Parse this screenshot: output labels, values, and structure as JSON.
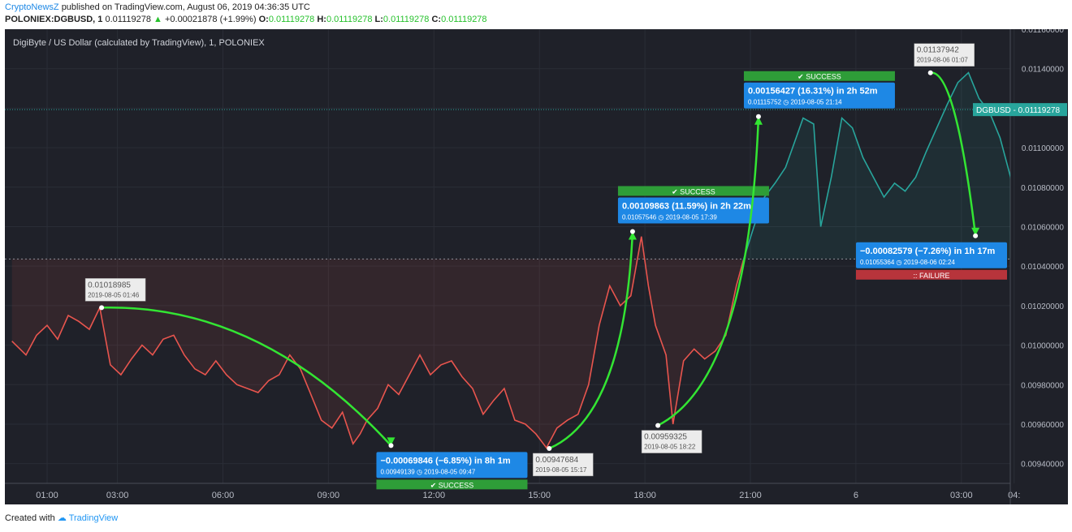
{
  "header": {
    "brand": "CryptoNewsZ",
    "published_text": "published on TradingView.com, August 06, 2019 04:36:35 UTC",
    "symbol": "POLONIEX:DGBUSD, 1",
    "price": "0.01119278",
    "change": "+0.00021878 (+1.99%)",
    "o_label": "O:",
    "o_value": "0.01119278",
    "h_label": "H:",
    "h_value": "0.01119278",
    "l_label": "L:",
    "l_value": "0.01119278",
    "c_label": "C:",
    "c_value": "0.01119278"
  },
  "footer": {
    "created_with": "Created with",
    "tv_name": "TradingView"
  },
  "colors": {
    "background": "#1f2129",
    "down_line": "#e8554e",
    "up_line": "#28a59c",
    "arrow": "#33e533",
    "label_blue": "#1e88e5",
    "success": "#2e9d38",
    "failure": "#b7343b"
  },
  "chart_data": {
    "type": "line",
    "title": "DigiByte / US Dollar (calculated by TradingView), 1, POLONIEX",
    "symbol_tag": "DGBUSD",
    "last_price": 0.01119278,
    "ylim": [
      0.0093,
      0.0116
    ],
    "y_ticks": [
      "0.01160000",
      "0.01140000",
      "0.01120000",
      "0.01100000",
      "0.01080000",
      "0.01060000",
      "0.01040000",
      "0.01020000",
      "0.01000000",
      "0.00980000",
      "0.00960000",
      "0.00940000"
    ],
    "x_ticks": [
      {
        "label": "01:00",
        "h": 0.0
      },
      {
        "label": "03:00",
        "h": 2.0
      },
      {
        "label": "06:00",
        "h": 5.0
      },
      {
        "label": "09:00",
        "h": 8.0
      },
      {
        "label": "12:00",
        "h": 11.0
      },
      {
        "label": "15:00",
        "h": 14.0
      },
      {
        "label": "18:00",
        "h": 17.0
      },
      {
        "label": "21:00",
        "h": 20.0
      },
      {
        "label": "6",
        "h": 23.0
      },
      {
        "label": "03:00",
        "h": 26.0
      },
      {
        "label": "04:"
      }
    ],
    "x_range_hours": [
      -1.0,
      27.6
    ],
    "prev_close_level": 0.010436,
    "series": [
      {
        "values": [
          [
            -1.0,
            0.01002
          ],
          [
            -0.6,
            0.00995
          ],
          [
            -0.3,
            0.01005
          ],
          [
            0.0,
            0.0101
          ],
          [
            0.3,
            0.01003
          ],
          [
            0.6,
            0.01015
          ],
          [
            0.9,
            0.01012
          ],
          [
            1.2,
            0.01008
          ],
          [
            1.5,
            0.01019
          ],
          [
            1.8,
            0.0099
          ],
          [
            2.1,
            0.00985
          ],
          [
            2.4,
            0.00993
          ],
          [
            2.7,
            0.01
          ],
          [
            3.0,
            0.00995
          ],
          [
            3.3,
            0.01003
          ],
          [
            3.6,
            0.01005
          ],
          [
            3.9,
            0.00995
          ],
          [
            4.2,
            0.00988
          ],
          [
            4.5,
            0.00985
          ],
          [
            4.8,
            0.00992
          ],
          [
            5.1,
            0.00985
          ],
          [
            5.4,
            0.0098
          ],
          [
            5.7,
            0.00978
          ],
          [
            6.0,
            0.00976
          ],
          [
            6.3,
            0.00982
          ],
          [
            6.6,
            0.00985
          ],
          [
            6.9,
            0.00995
          ],
          [
            7.2,
            0.00988
          ],
          [
            7.5,
            0.00975
          ],
          [
            7.8,
            0.00962
          ],
          [
            8.1,
            0.00958
          ],
          [
            8.4,
            0.00966
          ],
          [
            8.7,
            0.0095
          ],
          [
            8.9,
            0.00955
          ],
          [
            9.1,
            0.00962
          ],
          [
            9.4,
            0.00968
          ],
          [
            9.7,
            0.0098
          ],
          [
            10.0,
            0.00975
          ],
          [
            10.3,
            0.00985
          ],
          [
            10.6,
            0.00995
          ],
          [
            10.9,
            0.00985
          ],
          [
            11.2,
            0.0099
          ],
          [
            11.5,
            0.00992
          ],
          [
            11.8,
            0.00984
          ],
          [
            12.1,
            0.00978
          ],
          [
            12.4,
            0.00965
          ],
          [
            12.7,
            0.00972
          ],
          [
            13.0,
            0.00978
          ],
          [
            13.3,
            0.00962
          ],
          [
            13.6,
            0.0096
          ],
          [
            13.9,
            0.00955
          ],
          [
            14.2,
            0.00948
          ],
          [
            14.5,
            0.00958
          ],
          [
            14.8,
            0.00962
          ],
          [
            15.1,
            0.00965
          ],
          [
            15.4,
            0.0098
          ],
          [
            15.7,
            0.0101
          ],
          [
            16.0,
            0.0103
          ],
          [
            16.3,
            0.0102
          ],
          [
            16.6,
            0.01025
          ],
          [
            16.9,
            0.01055
          ],
          [
            17.1,
            0.0103
          ],
          [
            17.3,
            0.0101
          ],
          [
            17.6,
            0.00995
          ],
          [
            17.8,
            0.0096
          ],
          [
            18.1,
            0.00992
          ],
          [
            18.4,
            0.00998
          ],
          [
            18.7,
            0.00993
          ],
          [
            19.0,
            0.00997
          ],
          [
            19.3,
            0.01005
          ],
          [
            19.6,
            0.0103
          ],
          [
            19.8,
            0.01043
          ]
        ]
      },
      {
        "values": [
          [
            19.8,
            0.01043
          ],
          [
            20.1,
            0.0106
          ],
          [
            20.4,
            0.01075
          ],
          [
            20.7,
            0.01082
          ],
          [
            21.0,
            0.0109
          ],
          [
            21.3,
            0.01105
          ],
          [
            21.5,
            0.01115
          ],
          [
            21.8,
            0.01112
          ],
          [
            22.0,
            0.0106
          ],
          [
            22.3,
            0.01085
          ],
          [
            22.6,
            0.01115
          ],
          [
            22.9,
            0.0111
          ],
          [
            23.2,
            0.01095
          ],
          [
            23.5,
            0.01085
          ],
          [
            23.8,
            0.01075
          ],
          [
            24.1,
            0.01082
          ],
          [
            24.4,
            0.01078
          ],
          [
            24.7,
            0.01085
          ],
          [
            25.0,
            0.01098
          ],
          [
            25.3,
            0.0111
          ],
          [
            25.6,
            0.01122
          ],
          [
            25.9,
            0.01133
          ],
          [
            26.2,
            0.01138
          ],
          [
            26.5,
            0.01125
          ],
          [
            26.8,
            0.01118
          ],
          [
            27.1,
            0.01105
          ],
          [
            27.4,
            0.01085
          ],
          [
            27.7,
            0.01055
          ],
          [
            28.0,
            0.0108
          ],
          [
            28.3,
            0.011
          ],
          [
            28.6,
            0.01125
          ],
          [
            28.9,
            0.01132
          ],
          [
            29.2,
            0.01128
          ],
          [
            29.5,
            0.01115
          ],
          [
            29.8,
            0.0112
          ],
          [
            30.1,
            0.0111
          ],
          [
            30.4,
            0.01119
          ]
        ]
      }
    ],
    "annotations": [
      {
        "from": [
          1.55,
          0.01018985
        ],
        "to": [
          9.78,
          0.00949139
        ],
        "from_value": "0.01018985",
        "from_time": "2019-08-05 01:46",
        "change": "−0.00069846 (−6.85%)  in 8h 1m",
        "end_value": "0.00949139",
        "end_time": "2019-08-05  09:47",
        "status": "SUCCESS"
      },
      {
        "from": [
          14.28,
          0.00947684
        ],
        "to": [
          16.65,
          0.01057546
        ],
        "from_value": "0.00947684",
        "from_time": "2019-08-05 15:17",
        "change": "0.00109863 (11.59%)  in 2h 22m",
        "end_value": "0.01057546",
        "end_time": "2019-08-05  17:39",
        "status": "SUCCESS"
      },
      {
        "from": [
          17.37,
          0.00959325
        ],
        "to": [
          20.23,
          0.01115752
        ],
        "from_value": "0.00959325",
        "from_time": "2019-08-05 18:22",
        "change": "0.00156427 (16.31%)  in 2h 52m",
        "end_value": "0.01115752",
        "end_time": "2019-08-05  21:14",
        "status": "SUCCESS"
      },
      {
        "from": [
          25.12,
          0.01137942
        ],
        "to": [
          26.4,
          0.01055364
        ],
        "from_value": "0.01137942",
        "from_time": "2019-08-06 01:07",
        "change": "−0.00082579 (−7.26%)  in 1h 17m",
        "end_value": "0.01055364",
        "end_time": "2019-08-06  02:24",
        "status": "FAILURE"
      }
    ]
  }
}
